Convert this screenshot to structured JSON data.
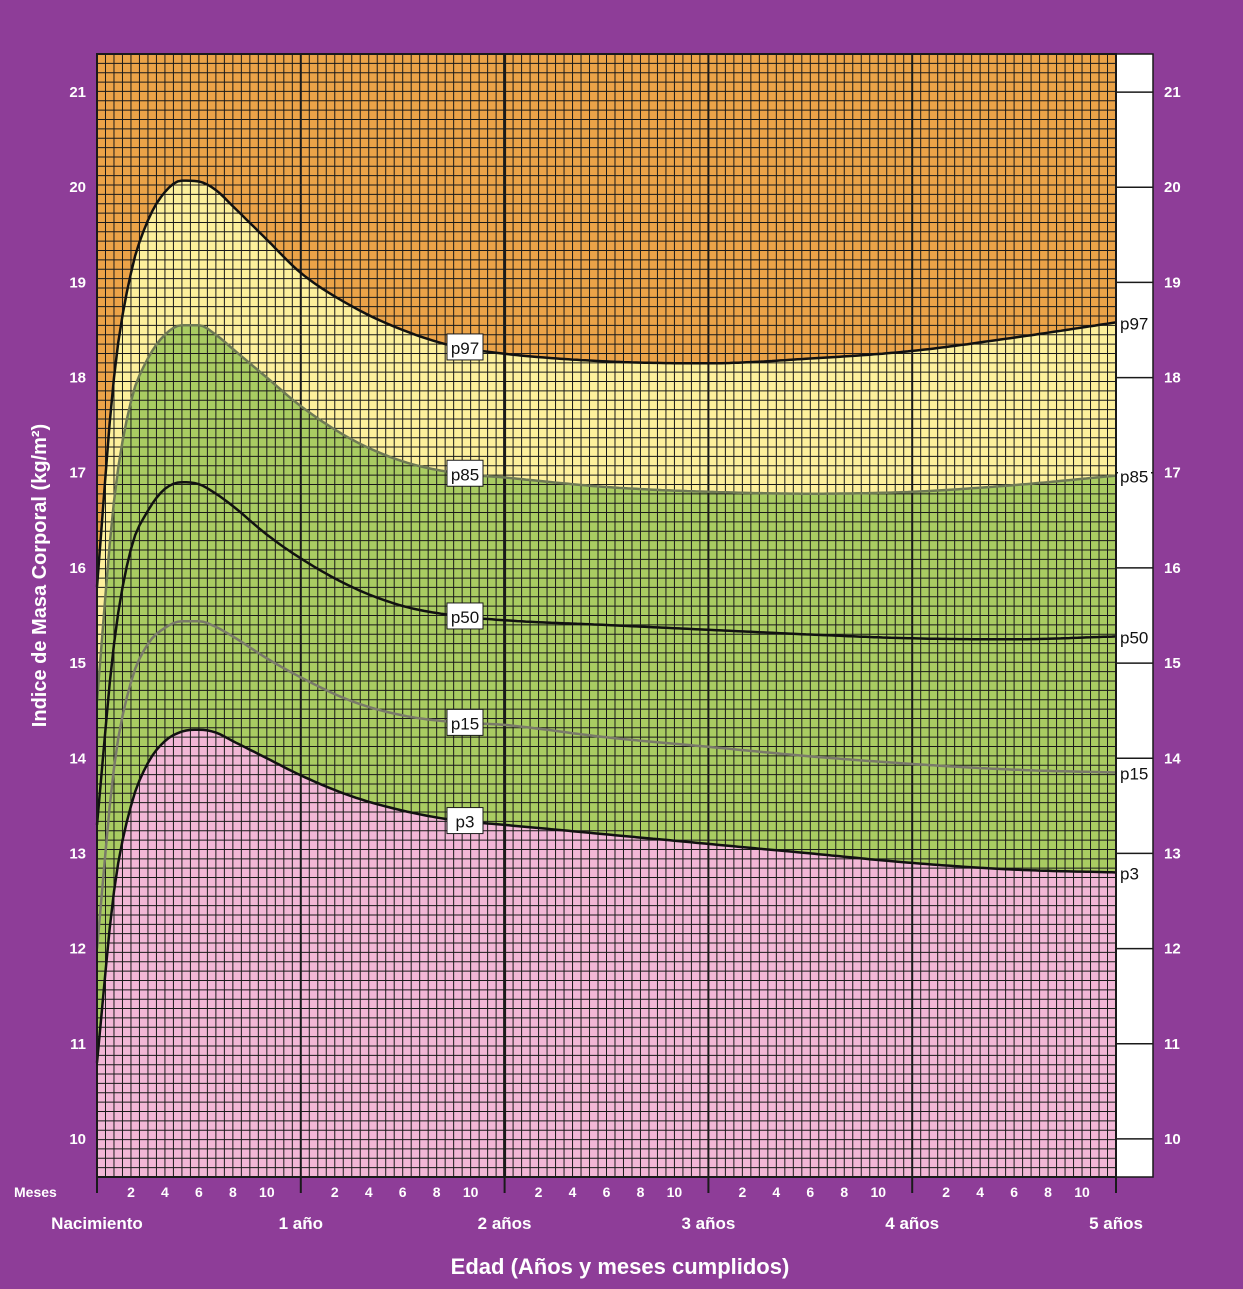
{
  "chart_data": {
    "type": "line",
    "xlabel": "Edad (Años y meses cumplidos)",
    "ylabel": "Indice de Masa Corporal (kg/m²)",
    "x_unit": "meses",
    "xlim": [
      0,
      60
    ],
    "ylim": [
      9.6,
      21.4
    ],
    "y_ticks": [
      10,
      11,
      12,
      13,
      14,
      15,
      16,
      17,
      18,
      19,
      20,
      21
    ],
    "months_row_label": "Meses",
    "month_ticks": [
      "2",
      "4",
      "6",
      "8",
      "10"
    ],
    "year_labels": [
      "Nacimiento",
      "1 año",
      "2 años",
      "3 años",
      "4 años",
      "5 años"
    ],
    "grid": true,
    "zones": [
      {
        "name": "bajo p3",
        "color": "#f2b7d6"
      },
      {
        "name": "p3 a p85",
        "color": "#a9cc62"
      },
      {
        "name": "p85 a p97",
        "color": "#fdf09c"
      },
      {
        "name": "sobre p97",
        "color": "#eba348"
      }
    ],
    "series": [
      {
        "name": "p97",
        "color": "#111111",
        "x": [
          0,
          1,
          2,
          3,
          4,
          5,
          6,
          7,
          8,
          10,
          12,
          15,
          18,
          21,
          24,
          30,
          36,
          42,
          48,
          54,
          60
        ],
        "y": [
          15.8,
          18.0,
          19.1,
          19.65,
          19.95,
          20.07,
          20.06,
          19.97,
          19.8,
          19.45,
          19.1,
          18.75,
          18.5,
          18.33,
          18.25,
          18.17,
          18.15,
          18.2,
          18.28,
          18.42,
          18.58
        ]
      },
      {
        "name": "p85",
        "color": "#6f7a55",
        "x": [
          0,
          1,
          2,
          3,
          4,
          5,
          6,
          7,
          8,
          10,
          12,
          15,
          18,
          21,
          24,
          30,
          36,
          42,
          48,
          54,
          60
        ],
        "y": [
          14.6,
          16.7,
          17.75,
          18.2,
          18.45,
          18.55,
          18.55,
          18.45,
          18.3,
          18.0,
          17.7,
          17.35,
          17.12,
          17.0,
          16.95,
          16.85,
          16.8,
          16.78,
          16.8,
          16.87,
          16.97
        ]
      },
      {
        "name": "p50",
        "color": "#111111",
        "x": [
          0,
          1,
          2,
          3,
          4,
          5,
          6,
          7,
          8,
          10,
          12,
          15,
          18,
          21,
          24,
          30,
          36,
          42,
          48,
          54,
          60
        ],
        "y": [
          13.3,
          15.2,
          16.2,
          16.6,
          16.83,
          16.9,
          16.88,
          16.78,
          16.65,
          16.35,
          16.1,
          15.8,
          15.6,
          15.5,
          15.45,
          15.4,
          15.35,
          15.3,
          15.26,
          15.25,
          15.28
        ]
      },
      {
        "name": "p15",
        "color": "#7a7a6a",
        "x": [
          0,
          1,
          2,
          3,
          4,
          5,
          6,
          7,
          8,
          10,
          12,
          15,
          18,
          21,
          24,
          30,
          36,
          42,
          48,
          54,
          60
        ],
        "y": [
          12.0,
          13.9,
          14.8,
          15.2,
          15.37,
          15.44,
          15.44,
          15.38,
          15.28,
          15.05,
          14.85,
          14.6,
          14.45,
          14.38,
          14.35,
          14.22,
          14.12,
          14.02,
          13.94,
          13.88,
          13.85
        ]
      },
      {
        "name": "p3",
        "color": "#111111",
        "x": [
          0,
          1,
          2,
          3,
          4,
          5,
          6,
          7,
          8,
          10,
          12,
          15,
          18,
          21,
          24,
          30,
          36,
          42,
          48,
          54,
          60
        ],
        "y": [
          10.8,
          12.6,
          13.5,
          13.95,
          14.18,
          14.28,
          14.3,
          14.27,
          14.18,
          14.0,
          13.82,
          13.6,
          13.45,
          13.35,
          13.3,
          13.2,
          13.1,
          13.0,
          12.9,
          12.83,
          12.8
        ]
      }
    ]
  }
}
